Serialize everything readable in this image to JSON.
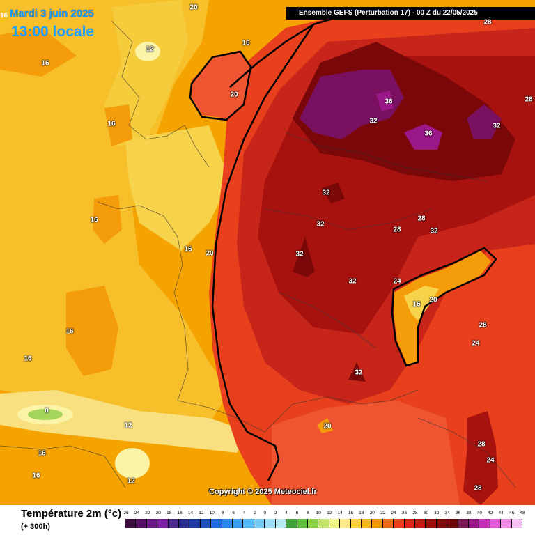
{
  "header": {
    "date": "Mardi 3 juin 2025",
    "time": "13:00 locale",
    "model": "Ensemble GEFS  (Perturbation 17)  -  00 Z du 22/05/2025",
    "corner_value": "16"
  },
  "copyright": "Copyright © 2025 Meteociel.fr",
  "legend": {
    "title": "Température 2m (°c)",
    "subtitle": "(+ 300h)",
    "ticks": [
      "-26",
      "-24",
      "-22",
      "-20",
      "-18",
      "-16",
      "-14",
      "-12",
      "-10",
      "-8",
      "-6",
      "-4",
      "-2",
      "0",
      "2",
      "4",
      "6",
      "8",
      "10",
      "12",
      "14",
      "16",
      "18",
      "20",
      "22",
      "24",
      "26",
      "28",
      "30",
      "32",
      "34",
      "36",
      "38",
      "40",
      "42",
      "44",
      "46",
      "48"
    ],
    "colors": [
      "#3b0a3f",
      "#561063",
      "#6a1a83",
      "#7b1fa2",
      "#4a2a8a",
      "#2a2d8f",
      "#1f3aa0",
      "#1c4ec2",
      "#1f6ae0",
      "#2a86f0",
      "#3aa0f5",
      "#55b8f7",
      "#78cdf7",
      "#9fdcf5",
      "#b7eaf0",
      "#3fa33a",
      "#5fbe3d",
      "#8ad142",
      "#c4e46e",
      "#f2f58c",
      "#fde88a",
      "#fbd23e",
      "#f8b821",
      "#f29708",
      "#ef6a10",
      "#e8401d",
      "#d8261a",
      "#bf1a13",
      "#a00e0c",
      "#830a0b",
      "#6b0707",
      "#7a1a55",
      "#9a1788",
      "#c82fb8",
      "#e659d6",
      "#f08be6",
      "#f7c2f3"
    ],
    "tick_values": [
      -26,
      -24,
      -22,
      -20,
      -18,
      -16,
      -14,
      -12,
      -10,
      -8,
      -6,
      -4,
      -2,
      0,
      2,
      4,
      6,
      8,
      10,
      12,
      14,
      16,
      18,
      20,
      22,
      24,
      26,
      28,
      30,
      32,
      34,
      36,
      38,
      40,
      42,
      44,
      46,
      48
    ]
  },
  "map_labels": [
    {
      "id": "l20-top",
      "text": "20"
    },
    {
      "id": "l12-north",
      "text": "12"
    },
    {
      "id": "l16-ne",
      "text": "16"
    },
    {
      "id": "l20-ne",
      "text": "20"
    },
    {
      "id": "l16-west",
      "text": "16"
    },
    {
      "id": "l16-mid",
      "text": "16"
    },
    {
      "id": "l16-brittany",
      "text": "16"
    },
    {
      "id": "l16-coast",
      "text": "16"
    },
    {
      "id": "l20-coast",
      "text": "20"
    },
    {
      "id": "l16-sea1",
      "text": "16"
    },
    {
      "id": "l16-sea2",
      "text": "16"
    },
    {
      "id": "l8",
      "text": "8"
    },
    {
      "id": "l12-spain",
      "text": "12"
    },
    {
      "id": "l12-spain2",
      "text": "12"
    },
    {
      "id": "l16-sw",
      "text": "16"
    },
    {
      "id": "l16-sw2",
      "text": "16"
    },
    {
      "id": "l36-a",
      "text": "36"
    },
    {
      "id": "l36-b",
      "text": "36"
    },
    {
      "id": "l32-ger",
      "text": "32"
    },
    {
      "id": "l32-east",
      "text": "32"
    },
    {
      "id": "l28-ne",
      "text": "28"
    },
    {
      "id": "l28-top",
      "text": "28"
    },
    {
      "id": "l32-c1",
      "text": "32"
    },
    {
      "id": "l32-c2",
      "text": "32"
    },
    {
      "id": "l32-c3",
      "text": "32"
    },
    {
      "id": "l32-c4",
      "text": "32"
    },
    {
      "id": "l28-c",
      "text": "28"
    },
    {
      "id": "l28-alps",
      "text": "28"
    },
    {
      "id": "l32-alps",
      "text": "32"
    },
    {
      "id": "l24-alps",
      "text": "24"
    },
    {
      "id": "l16-alps",
      "text": "16"
    },
    {
      "id": "l20-alps",
      "text": "20"
    },
    {
      "id": "l28-it",
      "text": "28"
    },
    {
      "id": "l24-it",
      "text": "24"
    },
    {
      "id": "l32-south",
      "text": "32"
    },
    {
      "id": "l20-med",
      "text": "20"
    },
    {
      "id": "l28-cor",
      "text": "28"
    },
    {
      "id": "l24-cor",
      "text": "24"
    },
    {
      "id": "l28-sard",
      "text": "28"
    }
  ]
}
